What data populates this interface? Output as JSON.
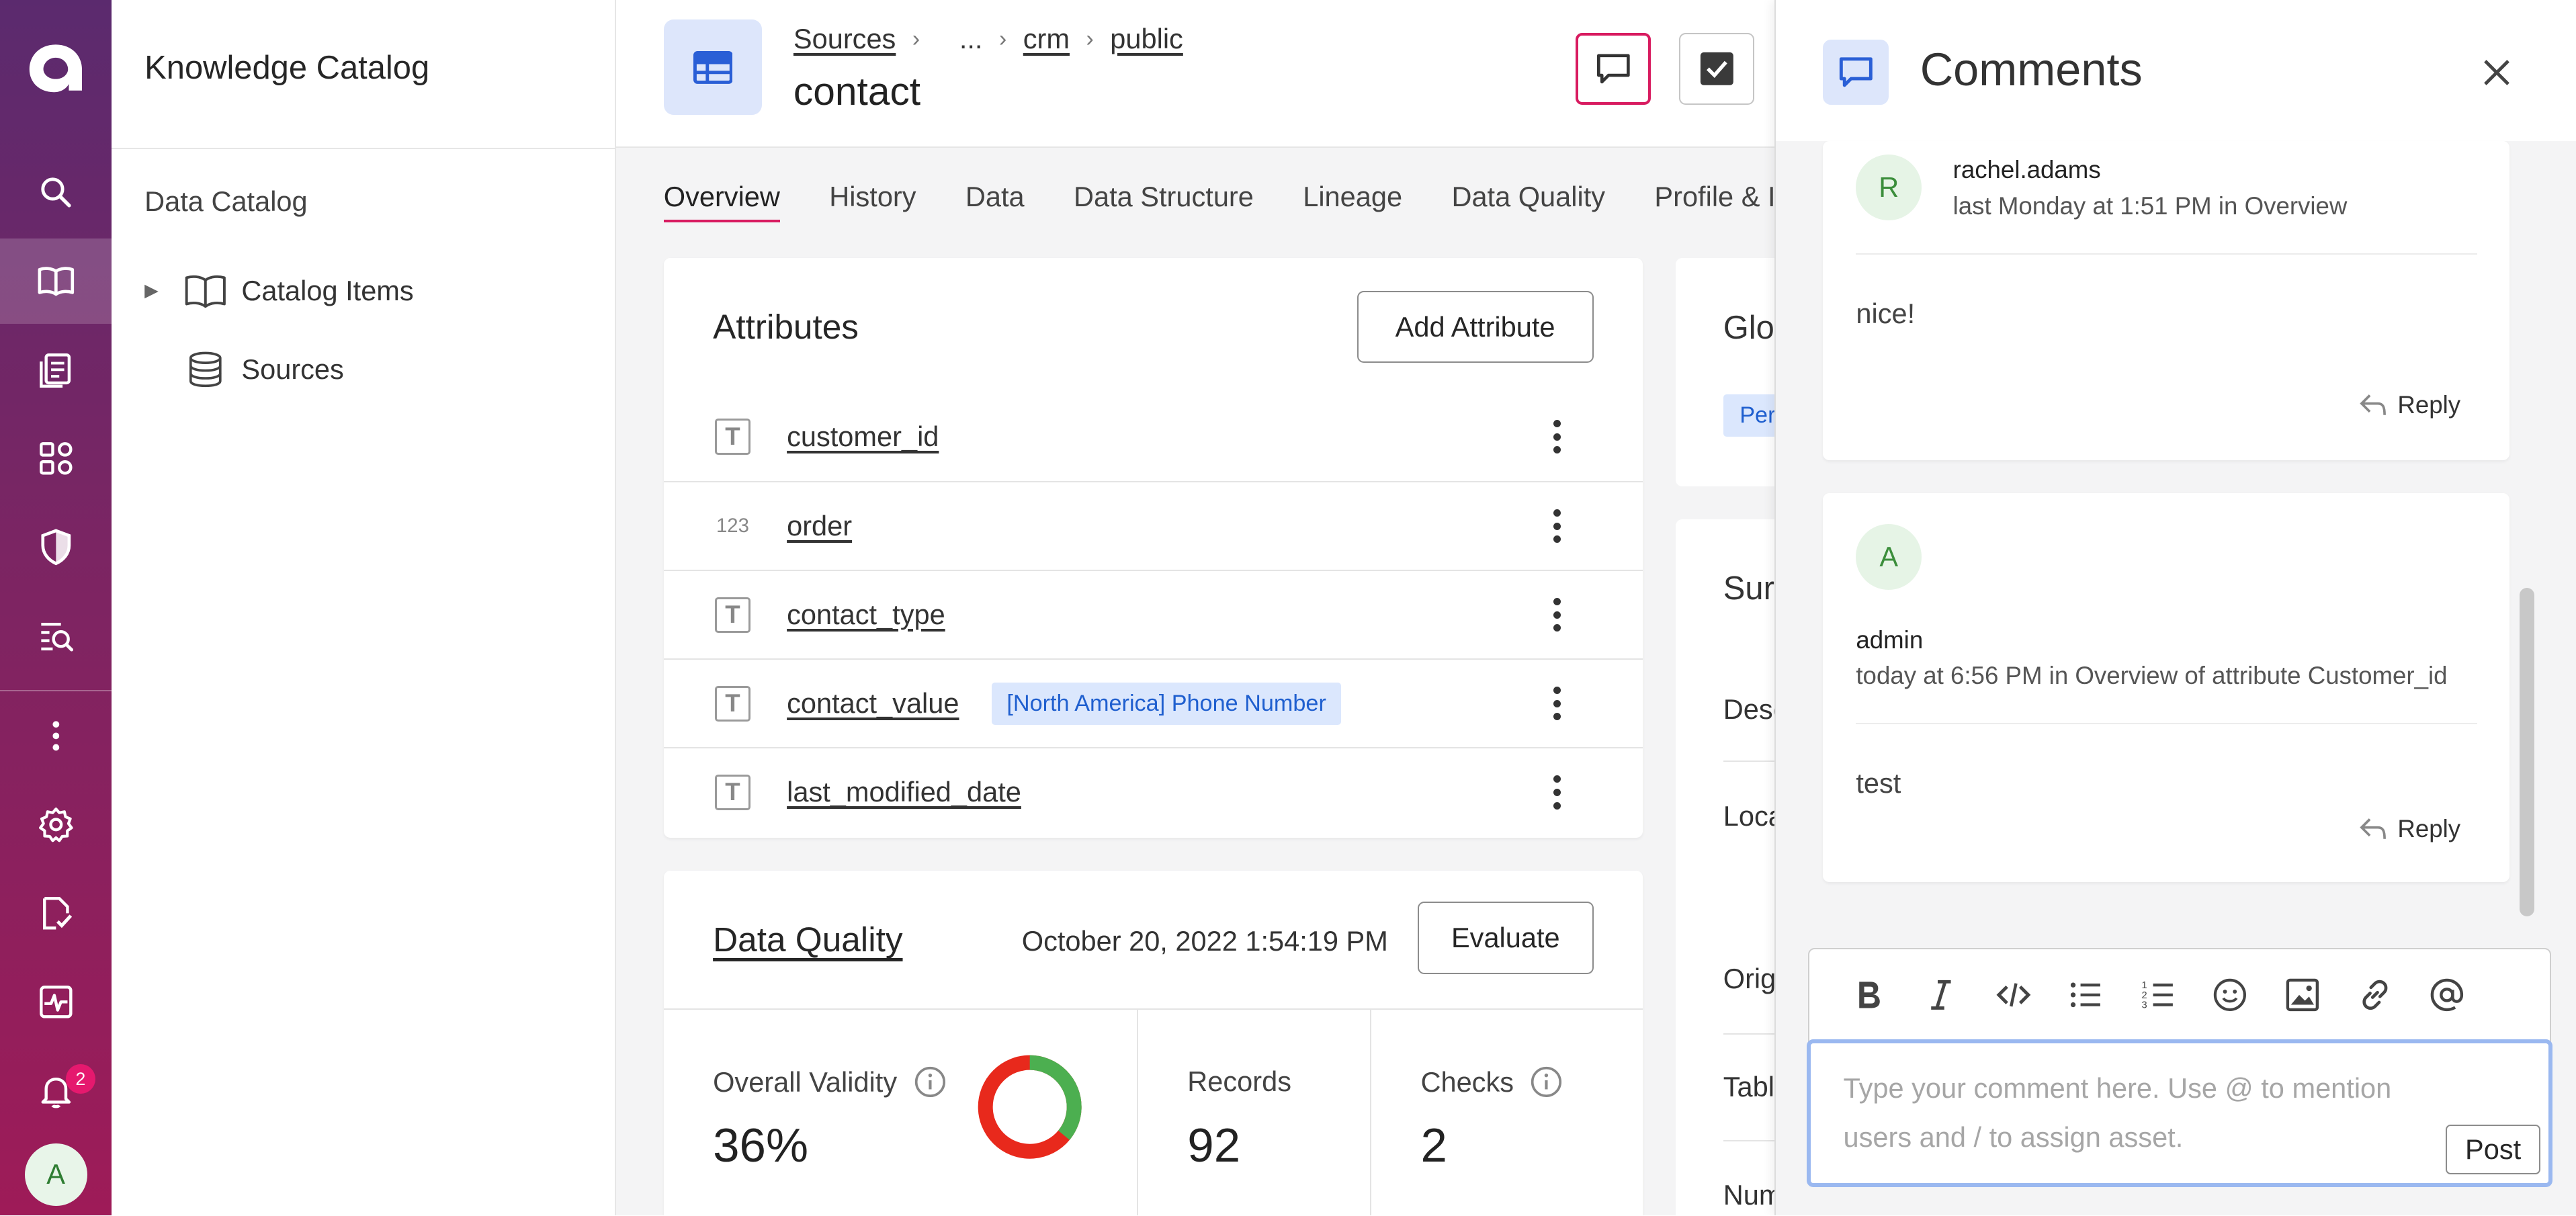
{
  "app": {
    "title": "Knowledge Catalog"
  },
  "nav": {
    "notification_count": "2",
    "user_initial": "A"
  },
  "catalog": {
    "section_label": "Data Catalog",
    "items": [
      {
        "label": "Catalog Items",
        "icon": "book-icon"
      },
      {
        "label": "Sources",
        "icon": "database-icon"
      }
    ]
  },
  "header": {
    "breadcrumb": [
      "Sources",
      "...",
      "crm",
      "public"
    ],
    "title": "contact"
  },
  "tabs": [
    "Overview",
    "History",
    "Data",
    "Data Structure",
    "Lineage",
    "Data Quality",
    "Profile & I"
  ],
  "active_tab": "Overview",
  "attributes": {
    "title": "Attributes",
    "add_button": "Add Attribute",
    "rows": [
      {
        "name": "customer_id",
        "type_icon": "T",
        "term": ""
      },
      {
        "name": "order",
        "type_icon": "123",
        "term": ""
      },
      {
        "name": "contact_type",
        "type_icon": "T",
        "term": ""
      },
      {
        "name": "contact_value",
        "type_icon": "T",
        "term": "[North America] Phone Number"
      },
      {
        "name": "last_modified_date",
        "type_icon": "T",
        "term": ""
      }
    ]
  },
  "data_quality": {
    "title": "Data Quality",
    "date": "October 20, 2022 1:54:19 PM",
    "evaluate_button": "Evaluate",
    "overall_validity_label": "Overall Validity",
    "overall_validity_value": "36%",
    "validity_fraction": 0.36,
    "records_label": "Records",
    "records_value": "92",
    "checks_label": "Checks",
    "checks_value": "2",
    "colors": {
      "valid": "#4caf50",
      "invalid": "#e8291c"
    }
  },
  "side_cards": {
    "glossary_label": "Glo",
    "glossary_chip": "Per",
    "summary_label": "Sur",
    "summary_rows": [
      "Desc",
      "Loca",
      "Orig",
      "Tabl",
      "Num"
    ]
  },
  "comments_panel": {
    "title": "Comments",
    "comments": [
      {
        "initial": "R",
        "user": "rachel.adams",
        "meta": "last Monday at 1:51 PM in Overview",
        "text": "nice!",
        "reply_label": "Reply"
      },
      {
        "initial": "A",
        "user": "admin",
        "meta": "today at 6:56 PM in Overview of attribute Customer_id",
        "text": "test",
        "reply_label": "Reply"
      }
    ],
    "editor": {
      "placeholder": "Type your comment here. Use @ to mention users and / to assign asset.",
      "post_label": "Post",
      "tools": [
        "bold-icon",
        "italic-icon",
        "code-icon",
        "bulleted-list-icon",
        "numbered-list-icon",
        "emoji-icon",
        "image-icon",
        "link-icon",
        "mention-icon"
      ]
    }
  },
  "colors": {
    "accent": "#d81b60",
    "brand_purple": "#5b2a6e",
    "link_blue": "#2a5fd6",
    "chip_bg": "#dbe7fd"
  }
}
